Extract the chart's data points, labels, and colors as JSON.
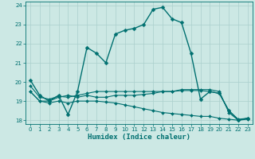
{
  "xlabel": "Humidex (Indice chaleur)",
  "background_color": "#cce8e4",
  "grid_color": "#aacfcc",
  "line_color": "#007070",
  "xlim": [
    -0.5,
    23.5
  ],
  "ylim": [
    17.8,
    24.2
  ],
  "xticks": [
    0,
    1,
    2,
    3,
    4,
    5,
    6,
    7,
    8,
    9,
    10,
    11,
    12,
    13,
    14,
    15,
    16,
    17,
    18,
    19,
    20,
    21,
    22,
    23
  ],
  "yticks": [
    18,
    19,
    20,
    21,
    22,
    23,
    24
  ],
  "series": [
    {
      "x": [
        0,
        1,
        2,
        3,
        4,
        5,
        6,
        7,
        8,
        9,
        10,
        11,
        12,
        13,
        14,
        15,
        16,
        17,
        18,
        19,
        20,
        21,
        22,
        23
      ],
      "y": [
        20.1,
        19.3,
        19.0,
        19.3,
        18.3,
        19.5,
        21.8,
        21.5,
        21.0,
        22.5,
        22.7,
        22.8,
        23.0,
        23.8,
        23.9,
        23.3,
        23.1,
        21.5,
        19.1,
        19.5,
        19.4,
        18.5,
        18.0,
        18.1
      ],
      "marker": "D",
      "markersize": 2.5,
      "linewidth": 1.0
    },
    {
      "x": [
        0,
        1,
        2,
        3,
        4,
        5,
        6,
        7,
        8,
        9,
        10,
        11,
        12,
        13,
        14,
        15,
        16,
        17,
        18,
        19,
        20,
        21,
        22,
        23
      ],
      "y": [
        19.5,
        19.0,
        19.0,
        19.2,
        19.3,
        19.2,
        19.3,
        19.2,
        19.2,
        19.3,
        19.3,
        19.3,
        19.35,
        19.4,
        19.5,
        19.5,
        19.6,
        19.6,
        19.6,
        19.6,
        19.5,
        18.4,
        18.0,
        18.1
      ],
      "marker": "D",
      "markersize": 2.0,
      "linewidth": 0.8
    },
    {
      "x": [
        0,
        1,
        2,
        3,
        4,
        5,
        6,
        7,
        8,
        9,
        10,
        11,
        12,
        13,
        14,
        15,
        16,
        17,
        18,
        19,
        20,
        21,
        22,
        23
      ],
      "y": [
        19.8,
        19.2,
        19.1,
        19.25,
        19.2,
        19.3,
        19.4,
        19.5,
        19.5,
        19.5,
        19.5,
        19.5,
        19.5,
        19.5,
        19.5,
        19.5,
        19.55,
        19.55,
        19.55,
        19.5,
        19.4,
        18.5,
        18.05,
        18.1
      ],
      "marker": "D",
      "markersize": 2.0,
      "linewidth": 0.8
    },
    {
      "x": [
        0,
        1,
        2,
        3,
        4,
        5,
        6,
        7,
        8,
        9,
        10,
        11,
        12,
        13,
        14,
        15,
        16,
        17,
        18,
        19,
        20,
        21,
        22,
        23
      ],
      "y": [
        19.5,
        19.0,
        18.9,
        19.0,
        18.9,
        19.0,
        19.0,
        19.0,
        18.95,
        18.9,
        18.8,
        18.7,
        18.6,
        18.5,
        18.4,
        18.35,
        18.3,
        18.25,
        18.2,
        18.2,
        18.1,
        18.05,
        18.0,
        18.05
      ],
      "marker": "D",
      "markersize": 2.0,
      "linewidth": 0.8
    }
  ]
}
